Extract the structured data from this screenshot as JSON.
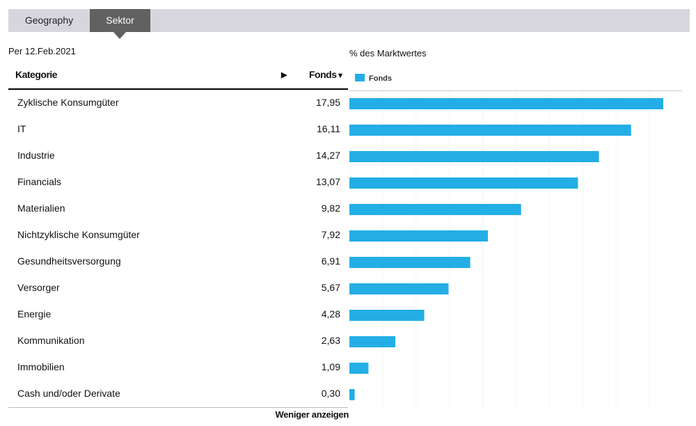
{
  "tabs": [
    {
      "label": "Geography",
      "active": false
    },
    {
      "label": "Sektor",
      "active": true
    }
  ],
  "as_of": "Per 12.Feb.2021",
  "table": {
    "col_category": "Kategorie",
    "col_sort_icon": "triangle-right-icon",
    "col_fund": "Fonds",
    "col_fund_sort_icon": "triangle-down-icon"
  },
  "show_less": "Weniger anzeigen",
  "chart_data": {
    "type": "bar",
    "orientation": "horizontal",
    "title": "% des Marktwertes",
    "legend": "top-left",
    "color": "#23aee5",
    "categories": [
      "Zyklische Konsumgüter",
      "IT",
      "Industrie",
      "Financials",
      "Materialien",
      "Nichtzyklische Konsumgüter",
      "Gesundheitsversorgung",
      "Versorger",
      "Energie",
      "Kommunikation",
      "Immobilien",
      "Cash und/oder Derivate"
    ],
    "series": [
      {
        "name": "Fonds",
        "values": [
          17.95,
          16.11,
          14.27,
          13.07,
          9.82,
          7.92,
          6.91,
          5.67,
          4.28,
          2.63,
          1.09,
          0.3
        ]
      }
    ],
    "value_labels": [
      "17,95",
      "16,11",
      "14,27",
      "13,07",
      "9,82",
      "7,92",
      "6,91",
      "5,67",
      "4,28",
      "2,63",
      "1,09",
      "0,30"
    ],
    "xlim": [
      0,
      19
    ]
  }
}
